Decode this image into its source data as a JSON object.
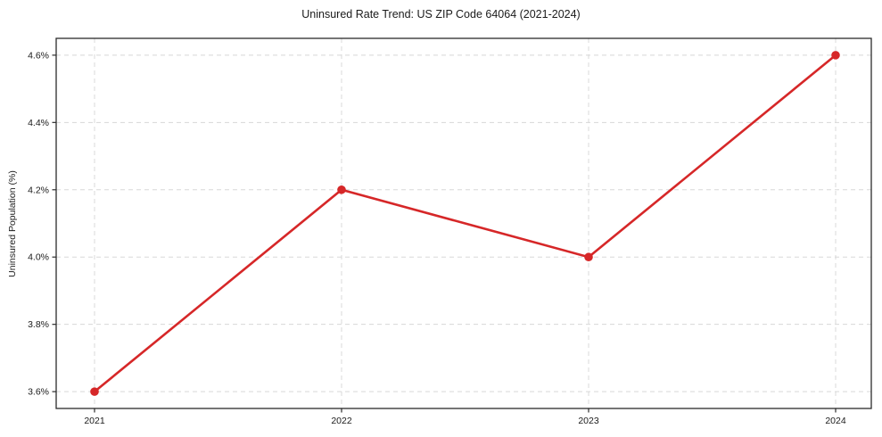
{
  "title": "Uninsured Rate Trend: US ZIP Code 64064 (2021-2024)",
  "chart_data": {
    "type": "line",
    "title": "Uninsured Rate Trend: US ZIP Code 64064 (2021-2024)",
    "categories": [
      "2021",
      "2022",
      "2023",
      "2024"
    ],
    "values": [
      3.6,
      4.2,
      4.0,
      4.6
    ],
    "xlabel": "",
    "ylabel": "Uninsured Population (%)",
    "ylim": [
      3.55,
      4.65
    ],
    "yticks": [
      3.6,
      3.8,
      4.0,
      4.2,
      4.4,
      4.6
    ],
    "ytick_labels": [
      "3.6%",
      "3.8%",
      "4.0%",
      "4.2%",
      "4.4%",
      "4.6%"
    ],
    "grid": true,
    "grid_style": "dashed",
    "legend": false,
    "marker": "circle",
    "colors": {
      "line": "#d62728",
      "marker": "#d62728",
      "grid": "#d8d8d8",
      "axis": "#2b2b2b",
      "text": "#1a1a1a"
    }
  }
}
